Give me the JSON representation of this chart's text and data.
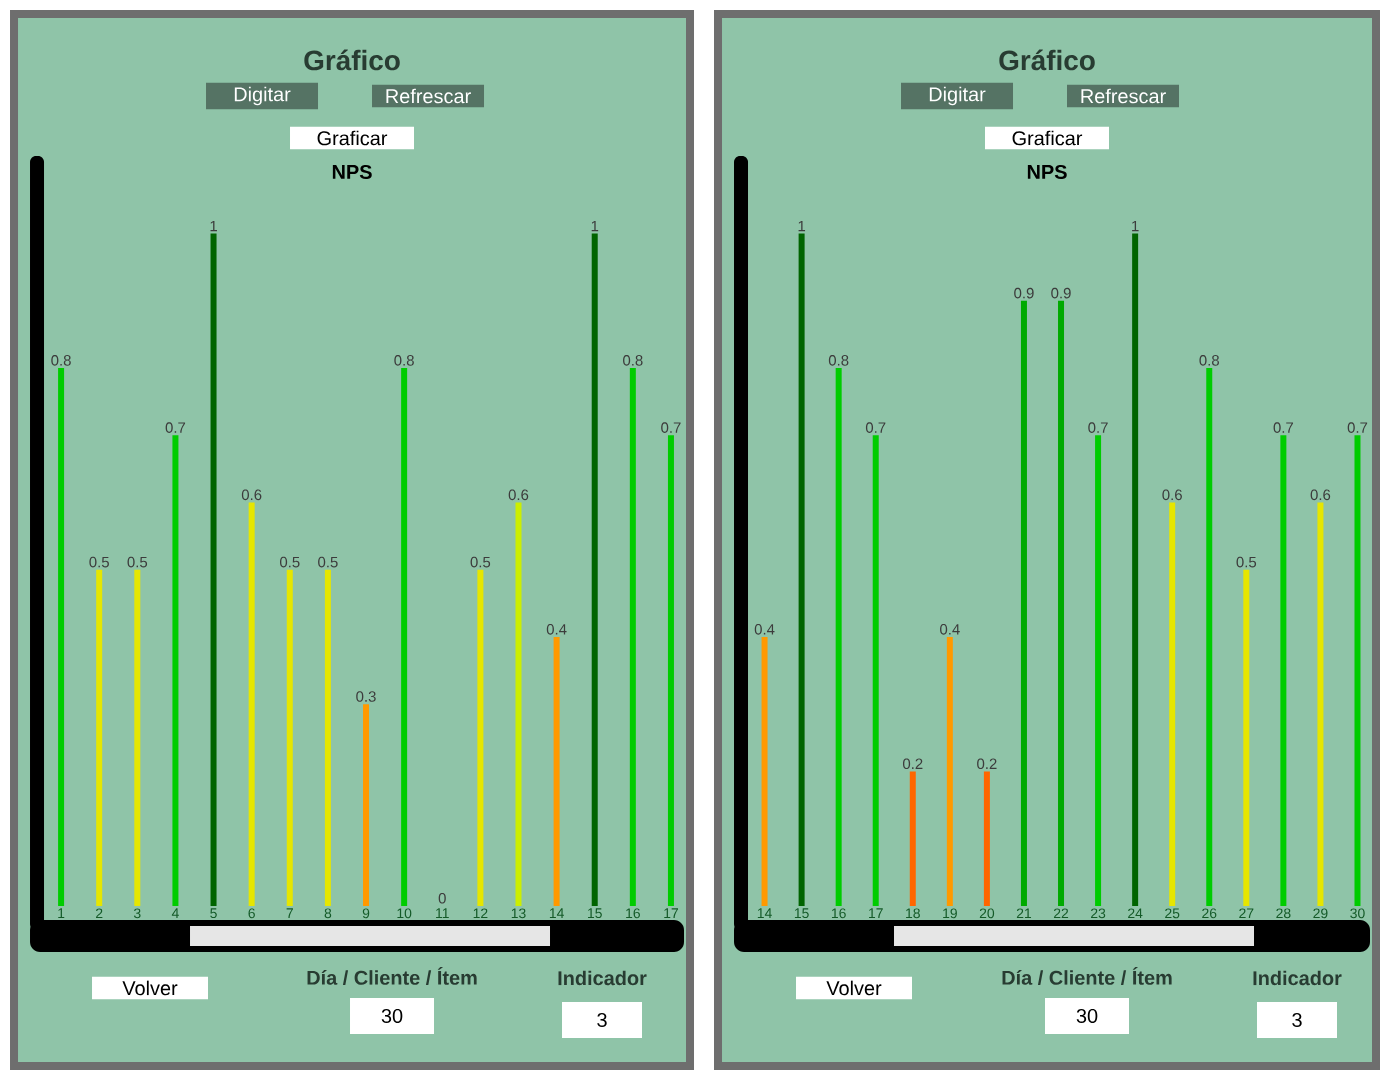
{
  "chart_data": [
    {
      "type": "bar",
      "title": "Gráfico",
      "subtitle": "NPS",
      "annotations": [
        "Digitar",
        "Refrescar",
        "Graficar",
        "Volver",
        "Día / Cliente / Ítem",
        "30",
        "Indicador",
        "3"
      ],
      "categories": [
        "1",
        "2",
        "3",
        "4",
        "5",
        "6",
        "7",
        "8",
        "9",
        "10",
        "11",
        "12",
        "13",
        "14",
        "15",
        "16",
        "17"
      ],
      "values": [
        0.8,
        0.5,
        0.5,
        0.7,
        1,
        0.6,
        0.5,
        0.5,
        0.3,
        0.8,
        0,
        0.5,
        0.6,
        0.4,
        1,
        0.8,
        0.7
      ],
      "colors": [
        "#00cc00",
        "#e6e600",
        "#e6e600",
        "#00cc00",
        "#006400",
        "#e6e600",
        "#e6e600",
        "#e6e600",
        "#ff9900",
        "#00cc00",
        "#00cc00",
        "#e6e600",
        "#ccee00",
        "#ff9900",
        "#006400",
        "#00cc00",
        "#00cc00"
      ],
      "data_labels": true
    },
    {
      "type": "bar",
      "title": "Gráfico",
      "subtitle": "NPS",
      "annotations": [
        "Digitar",
        "Refrescar",
        "Graficar",
        "Volver",
        "Día / Cliente / Ítem",
        "30",
        "Indicador",
        "3"
      ],
      "categories": [
        "14",
        "15",
        "16",
        "17",
        "18",
        "19",
        "20",
        "21",
        "22",
        "23",
        "24",
        "25",
        "26",
        "27",
        "28",
        "29",
        "30"
      ],
      "values": [
        0.4,
        1,
        0.8,
        0.7,
        0.2,
        0.4,
        0.2,
        0.9,
        0.9,
        0.7,
        1,
        0.6,
        0.8,
        0.5,
        0.7,
        0.6,
        0.7
      ],
      "colors": [
        "#ff9900",
        "#006400",
        "#00cc00",
        "#00cc00",
        "#ff6600",
        "#ff9900",
        "#ff6600",
        "#00aa00",
        "#00aa00",
        "#00cc00",
        "#006400",
        "#e6e600",
        "#00cc00",
        "#e6e600",
        "#00cc00",
        "#e6e600",
        "#00cc00"
      ],
      "data_labels": true
    }
  ]
}
